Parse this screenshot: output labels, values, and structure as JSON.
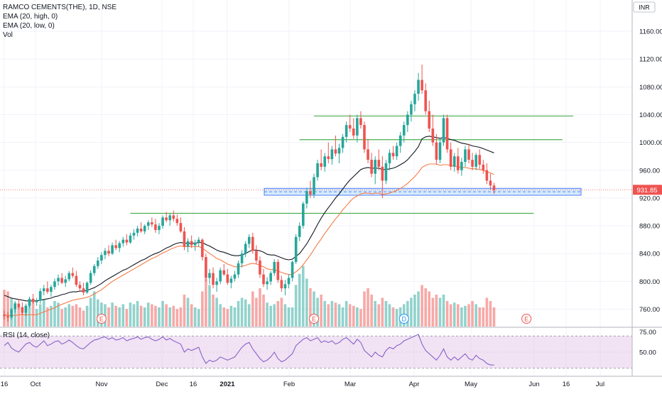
{
  "chart_data": {
    "type": "candlestick",
    "title": "RAMCO CEMENTS(THE), 1D, NSE",
    "indicators": [
      "EMA (20, high, 0)",
      "EMA (20, low, 0)",
      "Vol"
    ],
    "currency": "INR",
    "last_price": "931.85",
    "y_ticks": [
      "1160.00",
      "1120.00",
      "1080.00",
      "1040.00",
      "1000.00",
      "960.00",
      "920.00",
      "880.00",
      "840.00",
      "800.00",
      "760.00"
    ],
    "ylim": [
      735,
      1205
    ],
    "x_ticks": [
      "16",
      "Oct",
      "Nov",
      "Dec",
      "16",
      "2021",
      "Feb",
      "Mar",
      "Apr",
      "May",
      "Jun",
      "16",
      "Jul"
    ],
    "candles": [
      [
        752,
        758,
        745,
        750
      ],
      [
        750,
        756,
        742,
        748
      ],
      [
        748,
        762,
        745,
        760
      ],
      [
        760,
        772,
        755,
        768
      ],
      [
        768,
        775,
        760,
        763
      ],
      [
        763,
        770,
        752,
        755
      ],
      [
        755,
        768,
        750,
        765
      ],
      [
        765,
        778,
        762,
        775
      ],
      [
        775,
        782,
        768,
        770
      ],
      [
        770,
        776,
        765,
        772
      ],
      [
        772,
        790,
        768,
        786
      ],
      [
        786,
        795,
        780,
        790
      ],
      [
        790,
        800,
        782,
        785
      ],
      [
        785,
        795,
        778,
        792
      ],
      [
        792,
        804,
        788,
        800
      ],
      [
        800,
        810,
        794,
        805
      ],
      [
        805,
        812,
        796,
        798
      ],
      [
        798,
        808,
        792,
        803
      ],
      [
        803,
        815,
        800,
        812
      ],
      [
        812,
        820,
        805,
        808
      ],
      [
        808,
        815,
        792,
        795
      ],
      [
        795,
        800,
        785,
        790
      ],
      [
        790,
        798,
        780,
        784
      ],
      [
        784,
        800,
        782,
        798
      ],
      [
        798,
        816,
        795,
        812
      ],
      [
        812,
        825,
        808,
        822
      ],
      [
        822,
        835,
        818,
        830
      ],
      [
        830,
        842,
        825,
        838
      ],
      [
        838,
        848,
        832,
        844
      ],
      [
        844,
        852,
        836,
        840
      ],
      [
        840,
        856,
        838,
        852
      ],
      [
        852,
        860,
        845,
        848
      ],
      [
        848,
        858,
        842,
        855
      ],
      [
        855,
        864,
        850,
        860
      ],
      [
        860,
        868,
        852,
        856
      ],
      [
        856,
        870,
        854,
        866
      ],
      [
        866,
        875,
        860,
        870
      ],
      [
        870,
        880,
        865,
        876
      ],
      [
        876,
        885,
        870,
        872
      ],
      [
        872,
        882,
        868,
        880
      ],
      [
        880,
        888,
        874,
        885
      ],
      [
        885,
        892,
        878,
        882
      ],
      [
        882,
        890,
        870,
        874
      ],
      [
        874,
        884,
        868,
        880
      ],
      [
        880,
        895,
        876,
        892
      ],
      [
        892,
        900,
        885,
        888
      ],
      [
        888,
        898,
        880,
        895
      ],
      [
        895,
        902,
        886,
        890
      ],
      [
        890,
        896,
        880,
        884
      ],
      [
        884,
        892,
        870,
        872
      ],
      [
        872,
        878,
        845,
        850
      ],
      [
        850,
        862,
        842,
        858
      ],
      [
        858,
        866,
        848,
        852
      ],
      [
        852,
        860,
        844,
        856
      ],
      [
        856,
        864,
        850,
        860
      ],
      [
        860,
        862,
        830,
        835
      ],
      [
        835,
        840,
        800,
        805
      ],
      [
        805,
        818,
        796,
        812
      ],
      [
        812,
        820,
        790,
        795
      ],
      [
        795,
        805,
        785,
        800
      ],
      [
        800,
        820,
        796,
        816
      ],
      [
        816,
        825,
        808,
        810
      ],
      [
        810,
        818,
        795,
        798
      ],
      [
        798,
        808,
        790,
        804
      ],
      [
        804,
        815,
        800,
        810
      ],
      [
        810,
        830,
        805,
        826
      ],
      [
        826,
        845,
        820,
        840
      ],
      [
        840,
        858,
        835,
        854
      ],
      [
        854,
        868,
        848,
        864
      ],
      [
        864,
        870,
        840,
        844
      ],
      [
        844,
        852,
        825,
        830
      ],
      [
        830,
        836,
        805,
        810
      ],
      [
        810,
        818,
        792,
        796
      ],
      [
        796,
        806,
        788,
        800
      ],
      [
        800,
        815,
        795,
        812
      ],
      [
        812,
        832,
        808,
        828
      ],
      [
        828,
        832,
        798,
        802
      ],
      [
        802,
        808,
        785,
        790
      ],
      [
        790,
        802,
        780,
        796
      ],
      [
        796,
        810,
        790,
        805
      ],
      [
        805,
        830,
        800,
        828
      ],
      [
        828,
        868,
        825,
        864
      ],
      [
        864,
        885,
        858,
        880
      ],
      [
        880,
        915,
        876,
        912
      ],
      [
        912,
        935,
        905,
        930
      ],
      [
        930,
        945,
        920,
        925
      ],
      [
        925,
        955,
        920,
        950
      ],
      [
        950,
        975,
        945,
        970
      ],
      [
        970,
        990,
        960,
        965
      ],
      [
        965,
        985,
        958,
        980
      ],
      [
        980,
        1000,
        970,
        976
      ],
      [
        976,
        995,
        968,
        990
      ],
      [
        990,
        1010,
        980,
        984
      ],
      [
        984,
        998,
        970,
        992
      ],
      [
        992,
        1012,
        985,
        1008
      ],
      [
        1008,
        1030,
        1000,
        1025
      ],
      [
        1025,
        1040,
        1015,
        1020
      ],
      [
        1020,
        1035,
        1005,
        1010
      ],
      [
        1010,
        1040,
        1000,
        1035
      ],
      [
        1035,
        1045,
        1020,
        1025
      ],
      [
        1025,
        1030,
        985,
        990
      ],
      [
        990,
        1005,
        970,
        975
      ],
      [
        975,
        985,
        950,
        955
      ],
      [
        955,
        980,
        940,
        975
      ],
      [
        975,
        990,
        960,
        965
      ],
      [
        965,
        980,
        920,
        945
      ],
      [
        945,
        975,
        940,
        970
      ],
      [
        970,
        990,
        960,
        985
      ],
      [
        985,
        995,
        975,
        980
      ],
      [
        980,
        1000,
        975,
        995
      ],
      [
        995,
        1015,
        985,
        1010
      ],
      [
        1010,
        1030,
        1000,
        1025
      ],
      [
        1025,
        1045,
        1015,
        1040
      ],
      [
        1040,
        1060,
        1030,
        1055
      ],
      [
        1055,
        1075,
        1045,
        1070
      ],
      [
        1070,
        1100,
        1060,
        1090
      ],
      [
        1090,
        1112,
        1070,
        1075
      ],
      [
        1075,
        1085,
        1040,
        1045
      ],
      [
        1045,
        1060,
        1015,
        1020
      ],
      [
        1020,
        1040,
        995,
        1000
      ],
      [
        1000,
        1012,
        968,
        975
      ],
      [
        975,
        1005,
        970,
        1000
      ],
      [
        1000,
        1040,
        995,
        1035
      ],
      [
        1035,
        1040,
        985,
        990
      ],
      [
        990,
        1000,
        960,
        965
      ],
      [
        965,
        985,
        958,
        980
      ],
      [
        980,
        992,
        955,
        960
      ],
      [
        960,
        978,
        952,
        972
      ],
      [
        972,
        995,
        965,
        990
      ],
      [
        990,
        998,
        970,
        975
      ],
      [
        975,
        985,
        960,
        965
      ],
      [
        965,
        985,
        960,
        982
      ],
      [
        982,
        990,
        962,
        968
      ],
      [
        968,
        975,
        955,
        960
      ],
      [
        960,
        970,
        940,
        945
      ],
      [
        945,
        955,
        932,
        938
      ],
      [
        938,
        942,
        926,
        931
      ]
    ],
    "ema_high": [
      780,
      778,
      776,
      775,
      774,
      773,
      772,
      772,
      772,
      772,
      773,
      774,
      775,
      776,
      778,
      779,
      781,
      782,
      784,
      785,
      785,
      786,
      786,
      787,
      789,
      791,
      794,
      797,
      801,
      804,
      807,
      810,
      813,
      816,
      818,
      821,
      824,
      827,
      830,
      832,
      835,
      838,
      840,
      842,
      845,
      848,
      850,
      853,
      855,
      856,
      855,
      855,
      855,
      855,
      856,
      856,
      853,
      851,
      848,
      845,
      843,
      842,
      840,
      838,
      837,
      837,
      838,
      840,
      843,
      845,
      845,
      844,
      842,
      839,
      838,
      838,
      836,
      834,
      832,
      831,
      832,
      836,
      840,
      847,
      854,
      863,
      872,
      882,
      891,
      899,
      906,
      913,
      920,
      926,
      933,
      940,
      946,
      951,
      956,
      961,
      963,
      964,
      963,
      963,
      963,
      961,
      961,
      962,
      963,
      965,
      968,
      971,
      975,
      981,
      987,
      994,
      1005,
      1008,
      1009,
      1008,
      1007,
      1006,
      1007,
      1006,
      1004,
      1003,
      1001,
      999,
      998,
      997,
      995,
      994,
      993,
      991,
      989,
      987,
      985
    ],
    "ema_low": [
      752,
      751,
      751,
      751,
      752,
      752,
      752,
      752,
      752,
      752,
      754,
      756,
      758,
      760,
      762,
      765,
      767,
      769,
      771,
      773,
      774,
      775,
      776,
      777,
      779,
      782,
      785,
      788,
      792,
      796,
      800,
      803,
      806,
      809,
      812,
      815,
      818,
      821,
      824,
      827,
      830,
      833,
      835,
      838,
      841,
      843,
      846,
      848,
      850,
      851,
      850,
      850,
      850,
      850,
      850,
      848,
      844,
      840,
      837,
      833,
      831,
      828,
      825,
      823,
      821,
      821,
      822,
      823,
      825,
      826,
      825,
      823,
      821,
      818,
      817,
      817,
      815,
      813,
      811,
      810,
      810,
      814,
      818,
      824,
      831,
      838,
      846,
      854,
      861,
      869,
      876,
      883,
      890,
      896,
      903,
      909,
      915,
      920,
      923,
      926,
      927,
      927,
      926,
      927,
      927,
      925,
      926,
      927,
      929,
      931,
      934,
      937,
      941,
      946,
      951,
      957,
      964,
      967,
      969,
      969,
      969,
      967,
      968,
      968,
      967,
      966,
      965,
      964,
      964,
      963,
      962,
      962,
      961,
      960,
      958,
      956,
      954
    ],
    "volume": [
      23,
      22,
      18,
      15,
      14,
      12,
      13,
      16,
      15,
      11,
      14,
      17,
      12,
      13,
      16,
      15,
      11,
      12,
      14,
      13,
      14,
      12,
      10,
      13,
      18,
      22,
      17,
      15,
      14,
      12,
      15,
      13,
      12,
      14,
      11,
      15,
      14,
      16,
      13,
      12,
      15,
      14,
      13,
      12,
      16,
      14,
      12,
      13,
      11,
      12,
      20,
      18,
      14,
      12,
      11,
      22,
      30,
      26,
      20,
      18,
      14,
      12,
      11,
      13,
      12,
      16,
      18,
      17,
      14,
      22,
      18,
      24,
      20,
      15,
      13,
      14,
      16,
      18,
      14,
      12,
      12,
      26,
      33,
      38,
      30,
      24,
      22,
      18,
      20,
      16,
      14,
      16,
      15,
      14,
      12,
      16,
      14,
      13,
      12,
      11,
      22,
      24,
      20,
      16,
      14,
      18,
      16,
      14,
      12,
      11,
      12,
      14,
      16,
      18,
      20,
      22,
      26,
      24,
      22,
      18,
      20,
      18,
      20,
      16,
      14,
      15,
      14,
      12,
      13,
      14,
      16,
      14,
      12,
      12,
      18,
      16,
      12
    ],
    "support_zone": [
      924,
      934
    ],
    "trendlines": [
      {
        "y": 1038,
        "x0": 86,
        "x1": 158
      },
      {
        "y": 1004,
        "x0": 82,
        "x1": 155
      },
      {
        "y": 898,
        "x0": 35,
        "x1": 147
      }
    ],
    "events": [
      {
        "label": "E",
        "x": 27
      },
      {
        "label": "E",
        "x": 86
      },
      {
        "label": "D",
        "x": 111
      },
      {
        "label": "E",
        "x": 145
      }
    ],
    "rsi": {
      "label": "RSI (14, close)",
      "y_ticks": [
        "75.00",
        "50.00"
      ],
      "ylim": [
        20,
        80
      ],
      "bands": [
        70,
        30
      ],
      "values": [
        58,
        62,
        55,
        52,
        50,
        55,
        60,
        62,
        58,
        56,
        60,
        64,
        58,
        60,
        63,
        64,
        60,
        62,
        65,
        62,
        58,
        55,
        54,
        58,
        62,
        65,
        66,
        68,
        69,
        66,
        68,
        65,
        66,
        68,
        64,
        66,
        67,
        69,
        66,
        68,
        69,
        66,
        64,
        66,
        69,
        65,
        67,
        64,
        62,
        60,
        50,
        54,
        52,
        54,
        56,
        44,
        36,
        40,
        38,
        40,
        44,
        42,
        40,
        42,
        44,
        50,
        56,
        60,
        62,
        54,
        48,
        42,
        38,
        40,
        44,
        50,
        42,
        38,
        40,
        44,
        48,
        58,
        62,
        66,
        68,
        64,
        66,
        68,
        62,
        64,
        62,
        64,
        60,
        62,
        66,
        68,
        64,
        60,
        66,
        62,
        52,
        48,
        44,
        50,
        46,
        44,
        52,
        56,
        54,
        58,
        60,
        64,
        66,
        68,
        70,
        72,
        60,
        52,
        48,
        44,
        40,
        46,
        54,
        44,
        40,
        44,
        40,
        44,
        48,
        42,
        40,
        46,
        42,
        40,
        36,
        34,
        34
      ]
    }
  }
}
